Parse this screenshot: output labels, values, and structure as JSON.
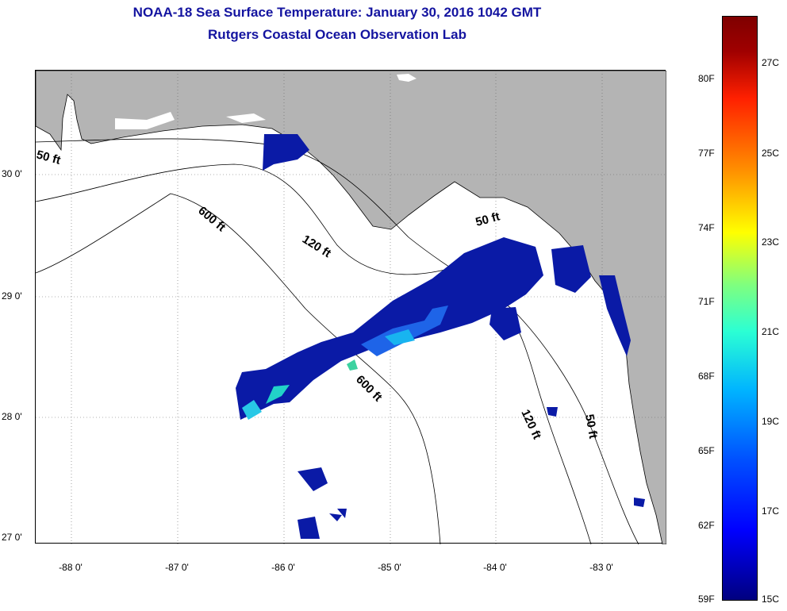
{
  "title": {
    "line1": "NOAA-18 Sea Surface Temperature:  January 30, 2016 1042 GMT",
    "line2": "Rutgers Coastal Ocean Observation Lab"
  },
  "axes": {
    "latitude_labels": [
      "30 0'",
      "29 0'",
      "28 0'",
      "27 0'"
    ],
    "longitude_labels": [
      "-88 0'",
      "-87 0'",
      "-86 0'",
      "-85 0'",
      "-84 0'",
      "-83 0'"
    ]
  },
  "depth_contours": {
    "labels": [
      "50 ft",
      "600 ft",
      "120 ft",
      "50 ft",
      "600 ft",
      "120 ft",
      "50 ft"
    ]
  },
  "colorbar": {
    "fahrenheit_labels": [
      "80F",
      "77F",
      "74F",
      "71F",
      "68F",
      "65F",
      "62F",
      "59F"
    ],
    "celsius_labels": [
      "27C",
      "25C",
      "23C",
      "21C",
      "19C",
      "17C",
      "15C"
    ]
  },
  "colors": {
    "title": "#1414a0",
    "land": "#b4b4b4",
    "sst_cold": "#0a1aa6"
  }
}
